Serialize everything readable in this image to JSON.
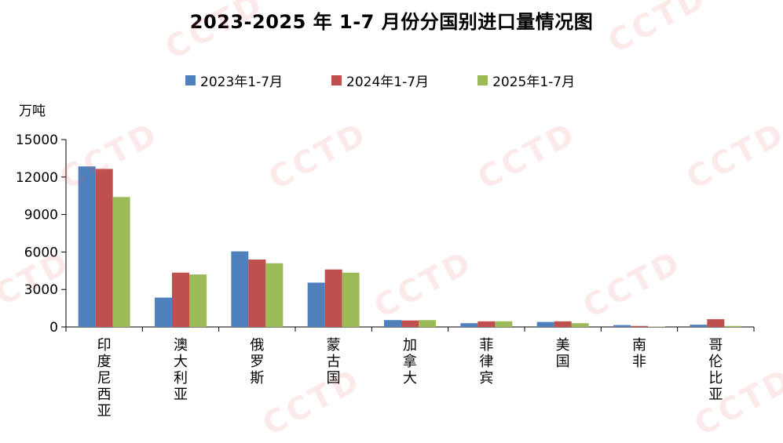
{
  "chart_data": {
    "type": "bar",
    "title": "2023-2025 年 1-7 月份分国别进口量情况图",
    "ylabel": "万吨",
    "ylim": [
      0,
      15000
    ],
    "yticks": [
      "0",
      "3000",
      "6000",
      "9000",
      "12000",
      "15000"
    ],
    "categories": [
      "印度尼西亚",
      "澳大利亚",
      "俄罗斯",
      "蒙古国",
      "加拿大",
      "菲律宾",
      "美国",
      "南非",
      "哥伦比亚"
    ],
    "series": [
      {
        "name": "2023年1-7月",
        "color": "#4f81bd",
        "values": [
          12850,
          2350,
          6050,
          3550,
          550,
          300,
          400,
          150,
          180
        ]
      },
      {
        "name": "2024年1-7月",
        "color": "#c0504d",
        "values": [
          12650,
          4350,
          5400,
          4600,
          520,
          450,
          450,
          80,
          620
        ]
      },
      {
        "name": "2025年1-7月",
        "color": "#9bbb59",
        "values": [
          10400,
          4200,
          5100,
          4350,
          550,
          450,
          300,
          30,
          80
        ]
      }
    ],
    "legend_position": "top",
    "grid": false
  },
  "watermark": {
    "text": "CCTD"
  }
}
